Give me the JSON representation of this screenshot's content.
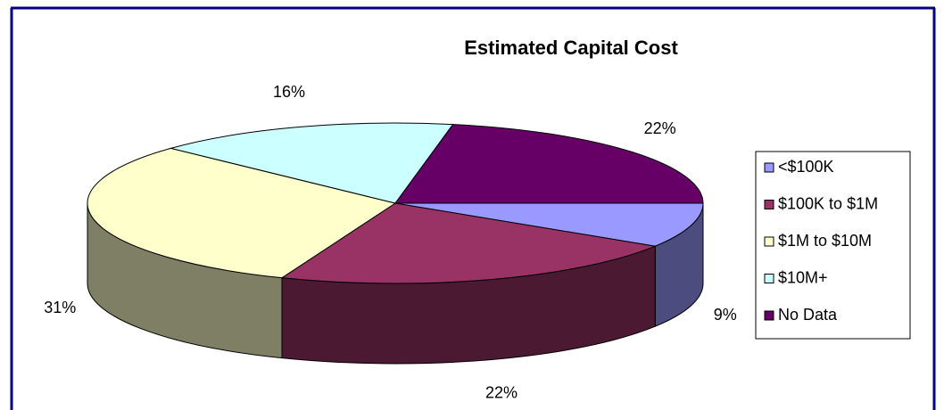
{
  "chart_data": {
    "type": "pie3d",
    "title": "Estimated Capital Cost",
    "categories": [
      "<$100K",
      "$100K to $1M",
      "$1M to $10M",
      "$10M+",
      "No Data"
    ],
    "values": [
      9,
      22,
      31,
      16,
      22
    ],
    "value_labels": [
      "9%",
      "22%",
      "31%",
      "16%",
      "22%"
    ],
    "colors": [
      "#9999ff",
      "#993366",
      "#ffffcc",
      "#ccffff",
      "#660066"
    ],
    "legend": "right"
  }
}
